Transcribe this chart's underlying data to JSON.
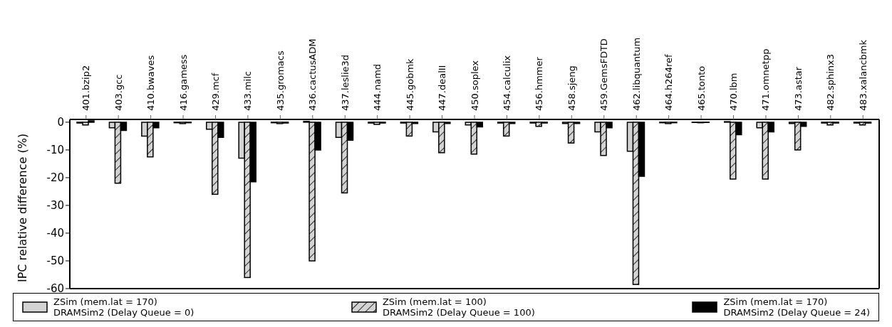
{
  "chart_data": {
    "type": "bar",
    "ylabel": "IPC relative difference (%)",
    "categories": [
      "401.bzip2",
      "403.gcc",
      "410.bwaves",
      "416.gamess",
      "429.mcf",
      "433.milc",
      "435.gromacs",
      "436.cactusADM",
      "437.leslie3d",
      "444.namd",
      "445.gobmk",
      "447.dealII",
      "450.soplex",
      "454.calculix",
      "456.hmmer",
      "458.sjeng",
      "459.GemsFDTD",
      "462.libquantum",
      "464.h264ref",
      "465.tonto",
      "470.lbm",
      "471.omnetpp",
      "473.astar",
      "482.sphinx3",
      "483.xalancbmk"
    ],
    "series": [
      {
        "name": "ZSim (mem.lat = 170)\nDRAMSim2 (Delay Queue = 0)",
        "color": "#d3d3d3",
        "values": [
          -0.3,
          -2,
          -5,
          -0.2,
          -2.5,
          -13,
          -0.2,
          0.3,
          -5.5,
          -0.3,
          -0.3,
          -3.5,
          -1,
          -0.3,
          -0.3,
          -0.5,
          -3.5,
          -10.5,
          -0.2,
          -0.1,
          0.2,
          -2,
          -0.5,
          -0.3,
          -0.3
        ]
      },
      {
        "name": "ZSim (mem.lat = 100)\nDRAMSim2 (Delay Queue = 100)",
        "color": "#d3d3d3",
        "values": [
          -1,
          -22,
          -12.5,
          -0.5,
          -26,
          -56,
          -0.5,
          -50,
          -25.5,
          -0.8,
          -5,
          -11,
          -11.5,
          -5,
          -1.5,
          -7.5,
          -12,
          -58.5,
          -0.5,
          -0.2,
          -20.5,
          -20.5,
          -10,
          -1,
          -1
        ]
      },
      {
        "name": "ZSim (mem.lat = 170)\nDRAMSim2 (Delay Queue = 24)",
        "color": "#000000",
        "values": [
          0.5,
          -3,
          -2,
          -0.2,
          -5.5,
          -21.5,
          -0.3,
          -10,
          -6.5,
          -0.3,
          -0.5,
          -0.5,
          -1.7,
          -0.5,
          -0.3,
          -0.5,
          -2,
          -19.5,
          -0.2,
          -0.1,
          -4.5,
          -3.5,
          -1.5,
          -0.3,
          -0.3
        ]
      }
    ],
    "ylim": [
      -60,
      1
    ],
    "yticks": [
      -60,
      -50,
      -40,
      -30,
      -20,
      -10,
      0
    ],
    "grid": false,
    "legend": "bottom"
  }
}
